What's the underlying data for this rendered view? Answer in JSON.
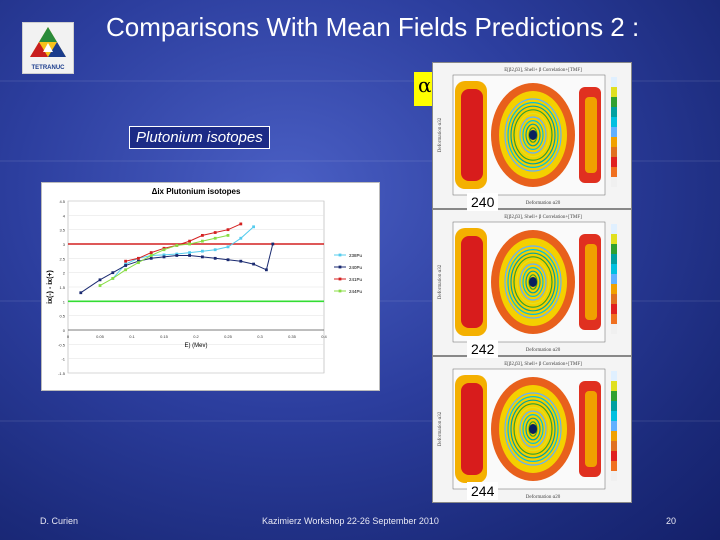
{
  "slide": {
    "title": "Comparisons With Mean Fields Predictions 2 :",
    "logo_text": "TETRANUC",
    "iso_label": "Plutonium isotopes",
    "alpha32": {
      "symbol": "α",
      "sub": "32"
    },
    "alpha20": {
      "symbol": "α",
      "sub": "20"
    },
    "nuclei": [
      "240",
      "242",
      "244"
    ],
    "heatmap_header": "E[β2,β3], Shell+ β Correlation+[TMF]",
    "heatmap_xlabel": "Deformation α20",
    "heatmap_ylabel": "Deformation α32",
    "footer": {
      "author": "D. Curien",
      "event": "Kazimierz Workshop 22-26 September 2010",
      "page": "20"
    }
  },
  "colors": {
    "background": "#2c3e9e",
    "label_bg": "#ffff00",
    "red_line": "#d42020",
    "green_line": "#33dd33"
  },
  "chart_data": {
    "type": "line",
    "title": "Δix Plutonium isotopes",
    "xlabel": "E) (Mev)",
    "ylabel": "ix(-) - ix(+)",
    "xlim": [
      0,
      0.4
    ],
    "ylim": [
      -1.5,
      4.5
    ],
    "xticks": [
      "0",
      "0.05",
      "0.1",
      "0.15",
      "0.2",
      "0.25",
      "0.3",
      "0.35",
      "0.4"
    ],
    "yticks": [
      "-1.5",
      "-1",
      "-0.5",
      "0",
      "0.5",
      "1",
      "1.5",
      "2",
      "2.5",
      "3",
      "3.5",
      "4",
      "4.5"
    ],
    "hlines": [
      {
        "y": 3,
        "color": "#d42020"
      },
      {
        "y": 1,
        "color": "#33dd33"
      }
    ],
    "legend": "right",
    "series": [
      {
        "name": "238Pu",
        "color": "#55ccee",
        "x": [
          0.07,
          0.09,
          0.11,
          0.13,
          0.15,
          0.17,
          0.19,
          0.21,
          0.23,
          0.25,
          0.27,
          0.29
        ],
        "y": [
          1.8,
          2.3,
          2.5,
          2.6,
          2.62,
          2.65,
          2.7,
          2.75,
          2.8,
          2.9,
          3.2,
          3.6
        ]
      },
      {
        "name": "240Pu",
        "color": "#1a2a70",
        "x": [
          0.02,
          0.05,
          0.07,
          0.09,
          0.11,
          0.13,
          0.15,
          0.17,
          0.19,
          0.21,
          0.23,
          0.25,
          0.27,
          0.29,
          0.31,
          0.32
        ],
        "y": [
          1.3,
          1.75,
          2.0,
          2.25,
          2.4,
          2.5,
          2.55,
          2.6,
          2.6,
          2.55,
          2.5,
          2.45,
          2.4,
          2.3,
          2.1,
          3.0
        ]
      },
      {
        "name": "241Pu",
        "color": "#d42020",
        "x": [
          0.09,
          0.11,
          0.13,
          0.15,
          0.17,
          0.19,
          0.21,
          0.23,
          0.25,
          0.27
        ],
        "y": [
          2.4,
          2.5,
          2.7,
          2.85,
          2.95,
          3.1,
          3.3,
          3.4,
          3.5,
          3.7
        ]
      },
      {
        "name": "244Pu",
        "color": "#88dd44",
        "x": [
          0.05,
          0.07,
          0.09,
          0.11,
          0.13,
          0.15,
          0.17,
          0.19,
          0.21,
          0.23,
          0.25
        ],
        "y": [
          1.55,
          1.8,
          2.1,
          2.35,
          2.6,
          2.8,
          2.95,
          3.0,
          3.1,
          3.2,
          3.3
        ]
      }
    ]
  }
}
